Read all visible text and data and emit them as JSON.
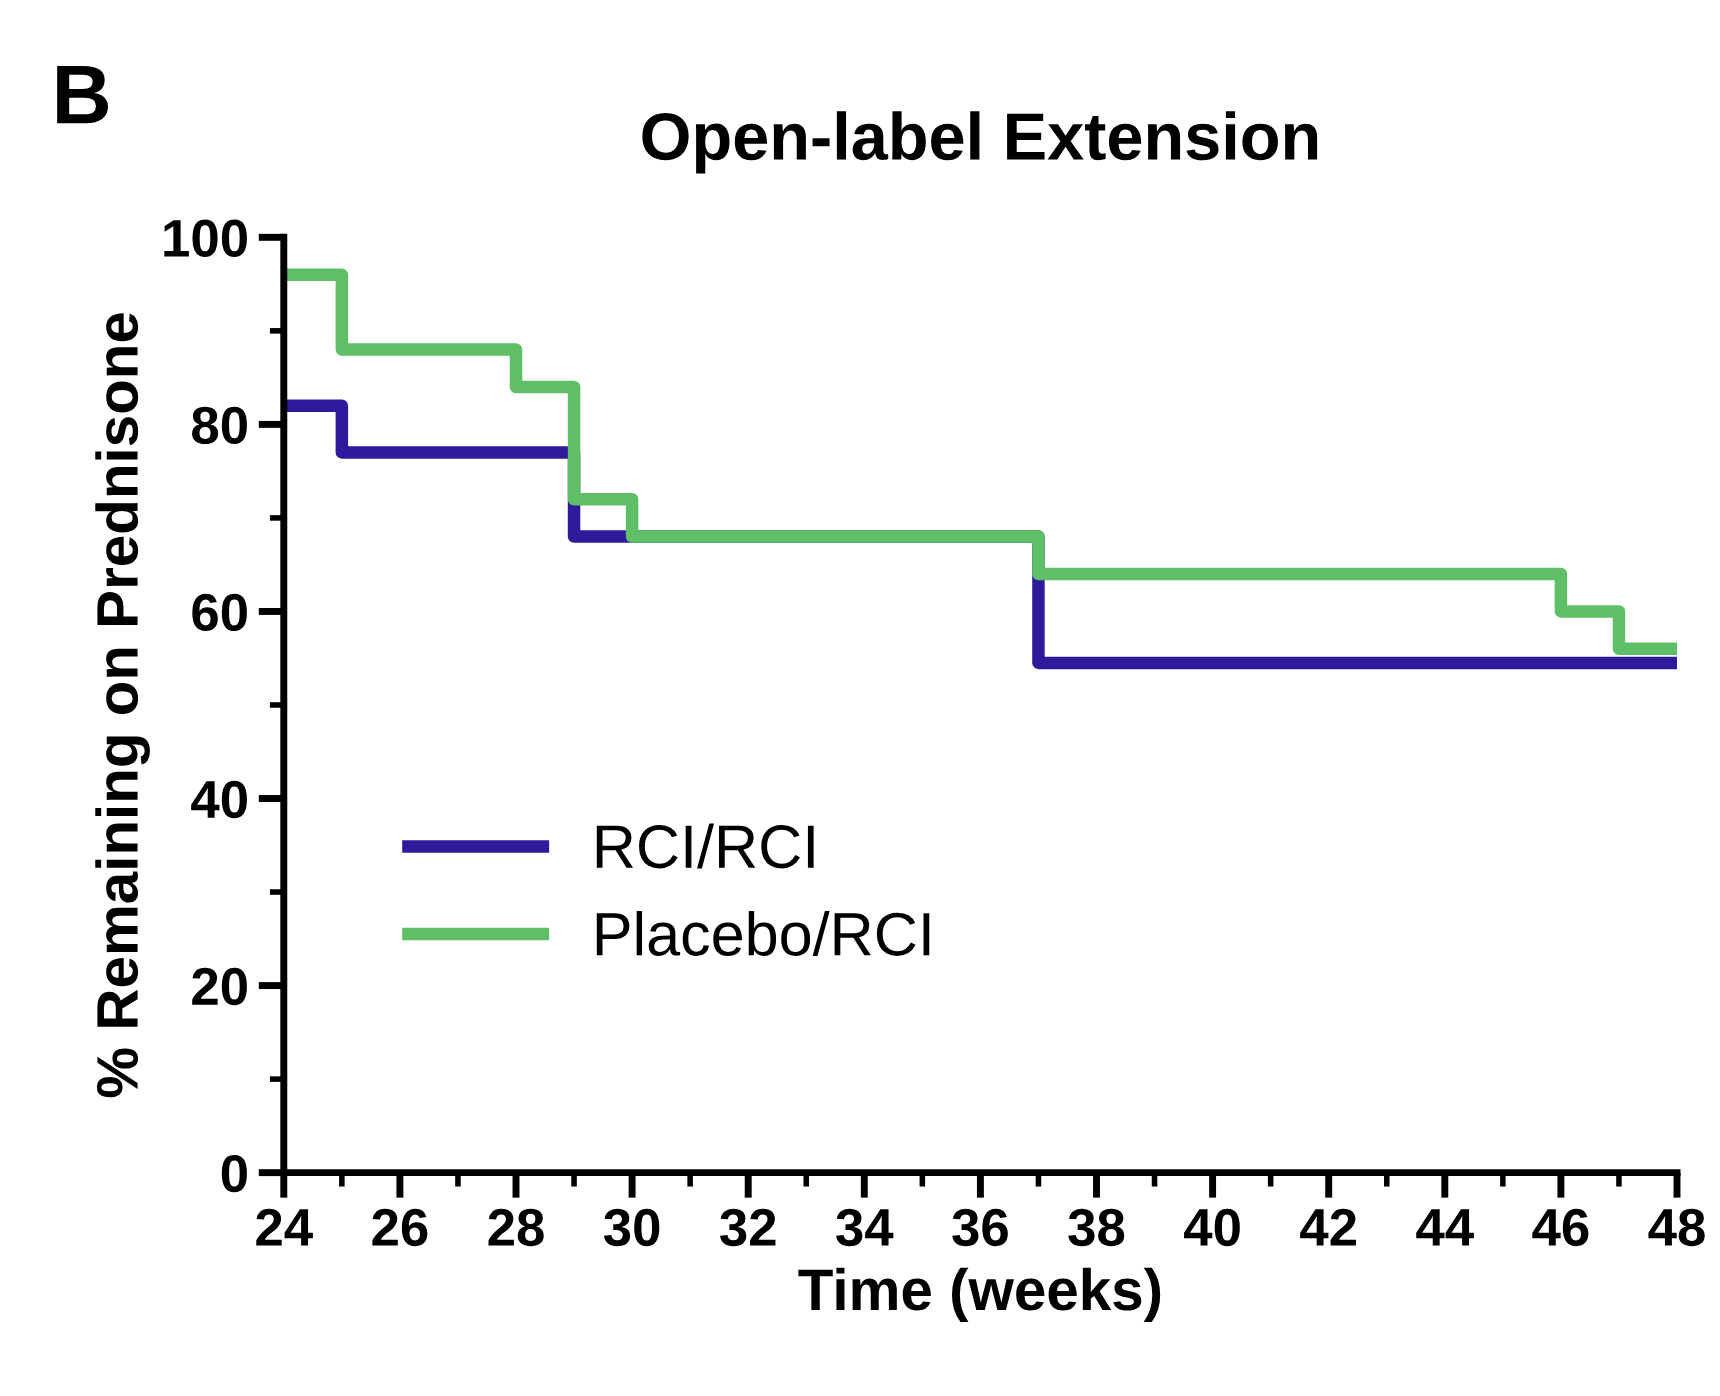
{
  "chart_data": {
    "type": "step",
    "title": "Open-label Extension",
    "xlabel": "Time (weeks)",
    "ylabel": "% Remaining on Prednisone",
    "annotations": [
      "B"
    ],
    "series": [
      {
        "name": "RCI/RCI",
        "color": "#2e1a9a",
        "x": [
          24,
          25,
          29,
          37,
          48
        ],
        "values": [
          82,
          77,
          68,
          54.5,
          54.5
        ]
      },
      {
        "name": "Placebo/RCI",
        "color": "#5fbf67",
        "x": [
          24,
          25,
          28,
          29,
          30,
          37,
          46,
          47,
          48
        ],
        "values": [
          96,
          88,
          84,
          72,
          68,
          64,
          60,
          56,
          56
        ]
      }
    ],
    "xlim": [
      24,
      48
    ],
    "ylim": [
      0,
      100
    ],
    "xticks": [
      24,
      {
        "value": 25,
        "label": null
      },
      26,
      {
        "value": 27,
        "label": null
      },
      28,
      {
        "value": 29,
        "label": null
      },
      30,
      {
        "value": 31,
        "label": null
      },
      32,
      {
        "value": 33,
        "label": null
      },
      34,
      {
        "value": 35,
        "label": null
      },
      36,
      {
        "value": 37,
        "label": null
      },
      38,
      {
        "value": 39,
        "label": null
      },
      40,
      {
        "value": 41,
        "label": null
      },
      42,
      {
        "value": 43,
        "label": null
      },
      44,
      {
        "value": 45,
        "label": null
      },
      46,
      {
        "value": 47,
        "label": null
      },
      48
    ],
    "yticks": [
      0,
      {
        "value": 10,
        "label": null
      },
      20,
      {
        "value": 30,
        "label": null
      },
      40,
      {
        "value": 50,
        "label": null
      },
      60,
      {
        "value": 70,
        "label": null
      },
      80,
      {
        "value": 90,
        "label": null
      },
      100
    ],
    "legend": "bottom left",
    "grid": false,
    "line_style": "solid"
  }
}
